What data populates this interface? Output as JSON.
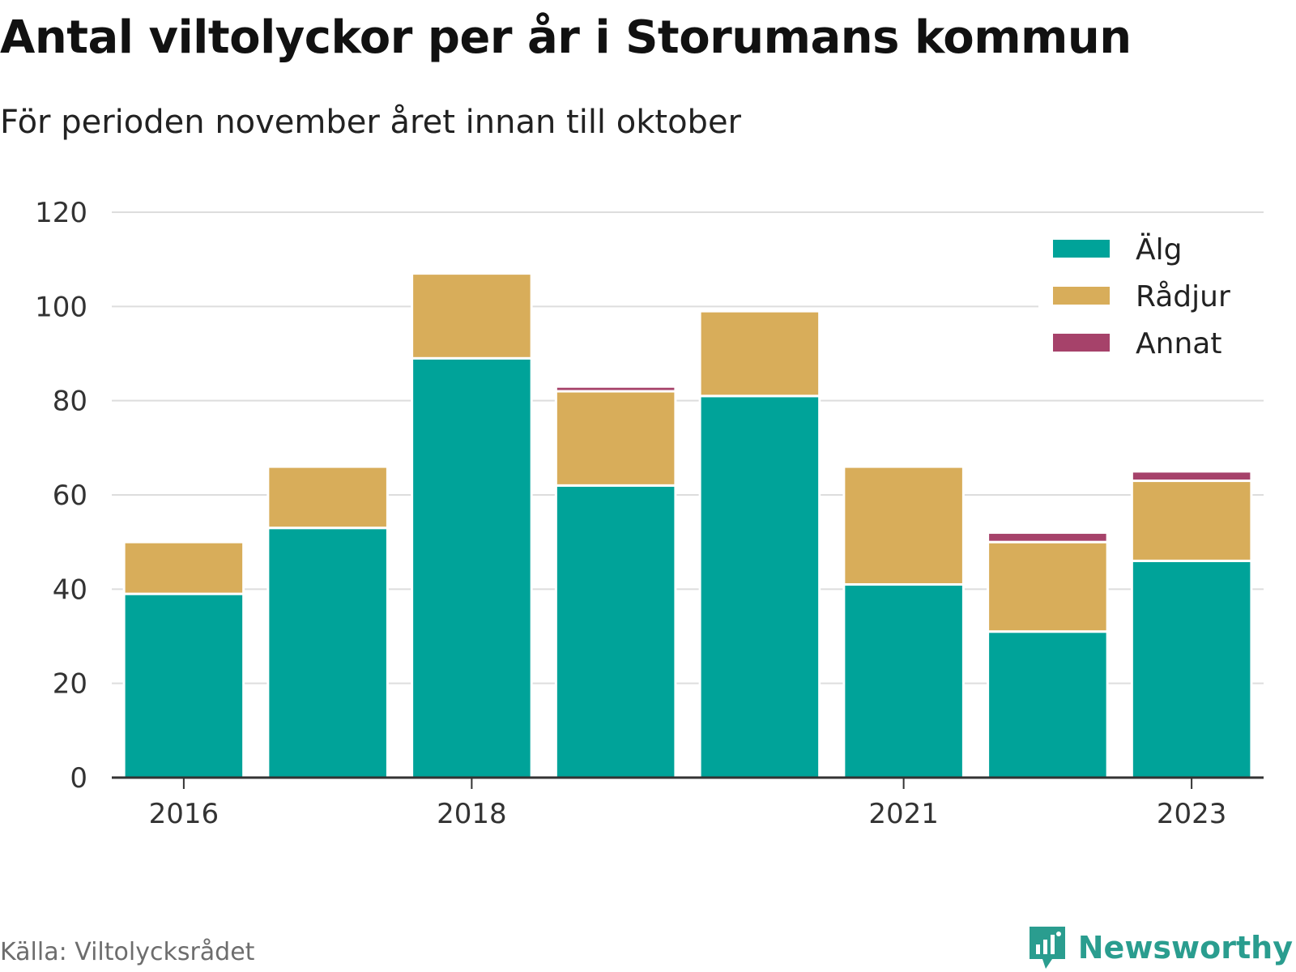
{
  "title": "Antal viltolyckor per år i Storumans kommun",
  "subtitle": "För perioden november året innan till oktober",
  "source": "Källa: Viltolycksrådet",
  "brand": "Newsworthy",
  "colors": {
    "alg": "#00a399",
    "radjur": "#d8ad5a",
    "annat": "#a6426a",
    "grid": "#dddddd",
    "axis": "#333333"
  },
  "chart_data": {
    "type": "bar",
    "stacked": true,
    "title": "Antal viltolyckor per år i Storumans kommun",
    "subtitle": "För perioden november året innan till oktober",
    "categories": [
      "2016",
      "2017",
      "2018",
      "2019",
      "2020",
      "2021",
      "2022",
      "2023"
    ],
    "x_tick_labels": [
      "2016",
      "",
      "2018",
      "",
      "",
      "2021",
      "",
      "2023"
    ],
    "series": [
      {
        "name": "Älg",
        "color": "#00a399",
        "values": [
          39,
          53,
          89,
          62,
          81,
          41,
          31,
          46
        ]
      },
      {
        "name": "Rådjur",
        "color": "#d8ad5a",
        "values": [
          11,
          13,
          18,
          20,
          18,
          25,
          19,
          17
        ]
      },
      {
        "name": "Annat",
        "color": "#a6426a",
        "values": [
          0,
          0,
          0,
          1,
          0,
          0,
          2,
          2
        ]
      }
    ],
    "ylim": [
      0,
      120
    ],
    "yticks": [
      0,
      20,
      40,
      60,
      80,
      100,
      120
    ],
    "grid": true,
    "legend_position": "top-right"
  }
}
